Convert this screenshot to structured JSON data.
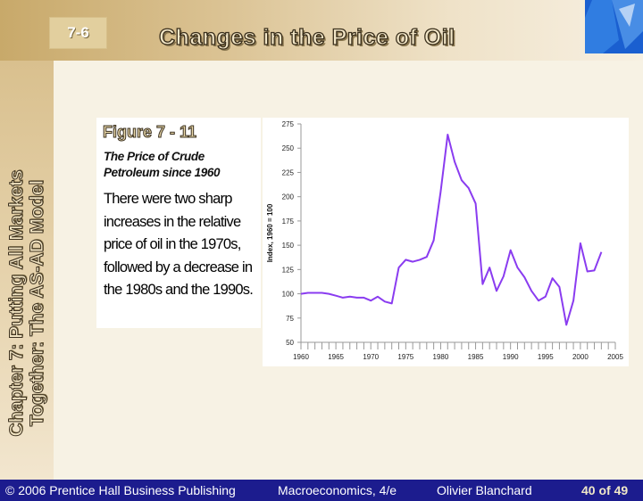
{
  "slide": {
    "number": "7-6",
    "title": "Changes in the Price of Oil",
    "chapter_title": "Chapter 7: Putting All Markets Together: The AS-AD Model"
  },
  "figure": {
    "label": "Figure 7 - 11",
    "subtitle": "The Price of Crude Petroleum since 1960",
    "caption": "There were two sharp increases in the relative price of oil in the 1970s, followed by a decrease in the 1980s and the 1990s."
  },
  "footer": {
    "copyright": "© 2006 Prentice Hall Business Publishing",
    "book": "Macroeconomics, 4/e",
    "author": "Olivier Blanchard",
    "pages": "40 of 49"
  },
  "colors": {
    "line": "#8a3cf0",
    "footer_bg": "#1c1c8e",
    "logo": "#1a5fd0"
  },
  "chart_data": {
    "type": "line",
    "title": "",
    "xlabel": "",
    "ylabel": "Index, 1960 = 100",
    "xlim": [
      1960,
      2005
    ],
    "ylim": [
      50,
      275
    ],
    "x_ticks": [
      1960,
      1965,
      1970,
      1975,
      1980,
      1985,
      1990,
      1995,
      2000,
      2005
    ],
    "y_ticks": [
      50,
      75,
      100,
      125,
      150,
      175,
      200,
      225,
      250,
      275
    ],
    "grid": false,
    "series": [
      {
        "x": [
          1960,
          1961,
          1962,
          1963,
          1964,
          1965,
          1966,
          1967,
          1968,
          1969,
          1970,
          1971,
          1972,
          1973,
          1974,
          1975,
          1976,
          1977,
          1978,
          1979,
          1980,
          1981,
          1982,
          1983,
          1984,
          1985,
          1986,
          1987,
          1988,
          1989,
          1990,
          1991,
          1992,
          1993,
          1994,
          1995,
          1996,
          1997,
          1998,
          1999,
          2000,
          2001,
          2002,
          2003
        ],
        "y": [
          100,
          101,
          101,
          101,
          100,
          98,
          96,
          97,
          96,
          96,
          93,
          97,
          92,
          90,
          127,
          135,
          133,
          135,
          138,
          155,
          205,
          264,
          236,
          217,
          209,
          193,
          110,
          127,
          103,
          118,
          145,
          127,
          117,
          103,
          93,
          97,
          116,
          107,
          68,
          93,
          152,
          123,
          124,
          143
        ]
      }
    ]
  }
}
